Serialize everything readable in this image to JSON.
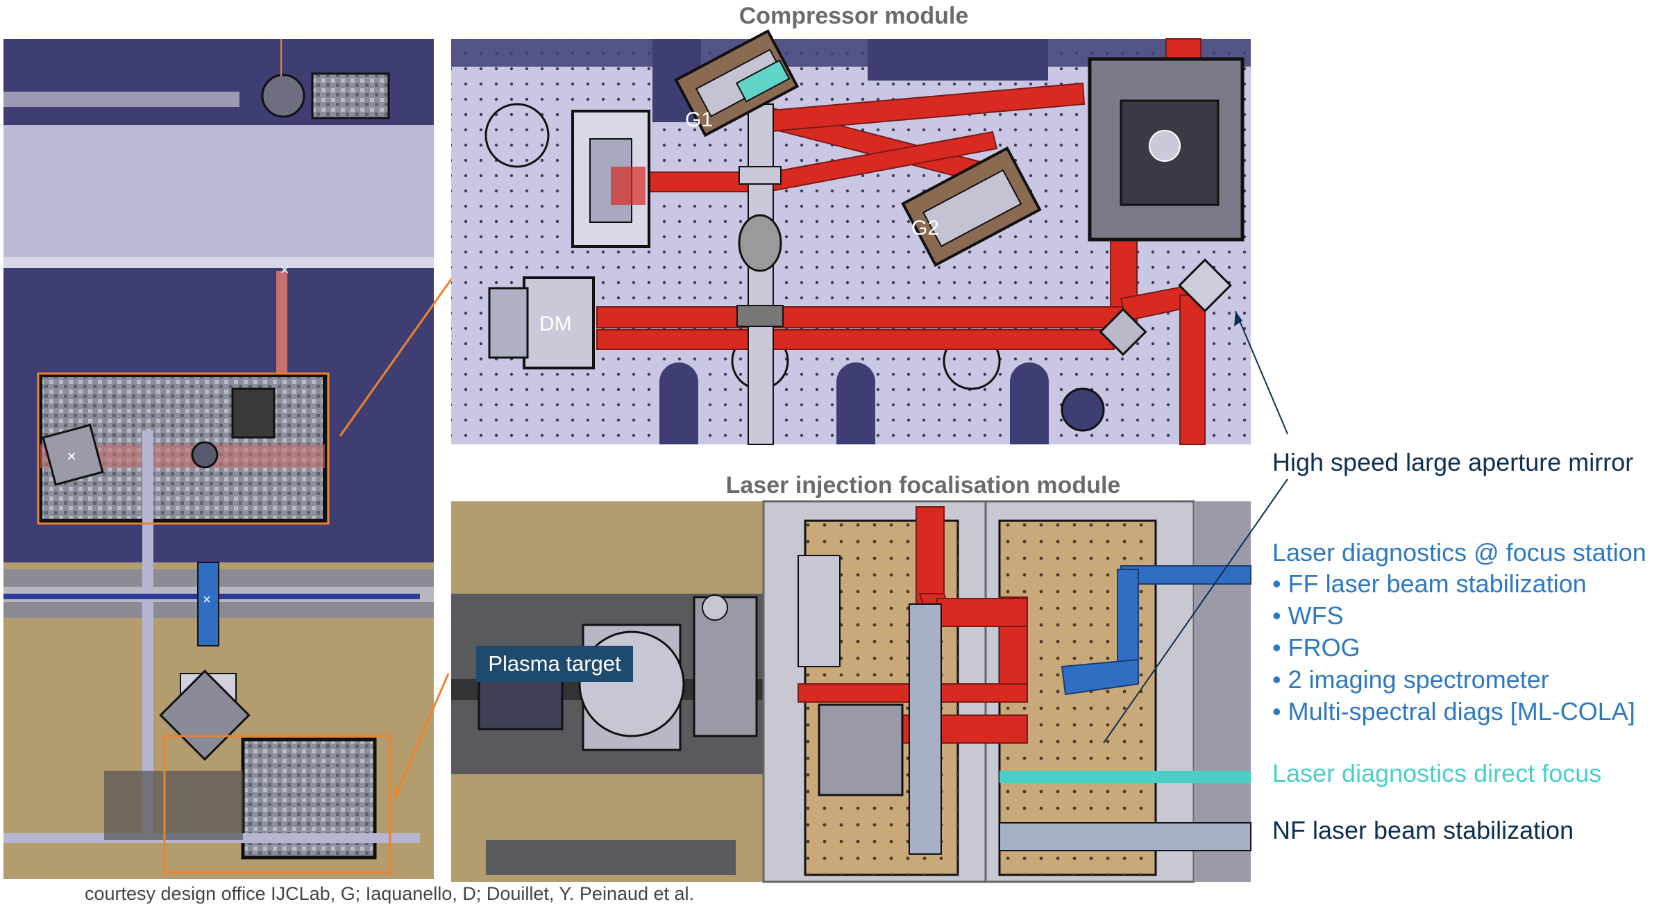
{
  "titles": {
    "compressor": "Compressor module",
    "injection": "Laser injection focalisation module"
  },
  "labels": {
    "g1": "G1",
    "g2": "G2",
    "dm": "DM",
    "plasma_target": "Plasma target"
  },
  "legend": {
    "mirror": "High speed large aperture mirror",
    "diagnostics_title": "Laser diagnostics @ focus station",
    "diagnostics_items": [
      "• FF laser beam stabilization",
      "• WFS",
      "• FROG",
      "• 2 imaging spectrometer",
      "• Multi-spectral diags [ML-COLA]"
    ],
    "direct_focus": "Laser diagnostics direct focus",
    "nf_stabilization": "NF laser beam stabilization"
  },
  "credit": "courtesy design office IJCLab, G; Iaquanello, D; Douillet, Y. Peinaud et al.",
  "colors": {
    "beam_red": "#d92a22",
    "table_lavender": "#c9c7e3",
    "floor_tan": "#b79e72",
    "dark_blue": "#0e2f52",
    "mid_blue": "#2e78c0",
    "teal": "#48cfc8",
    "orange": "#f0822a"
  }
}
